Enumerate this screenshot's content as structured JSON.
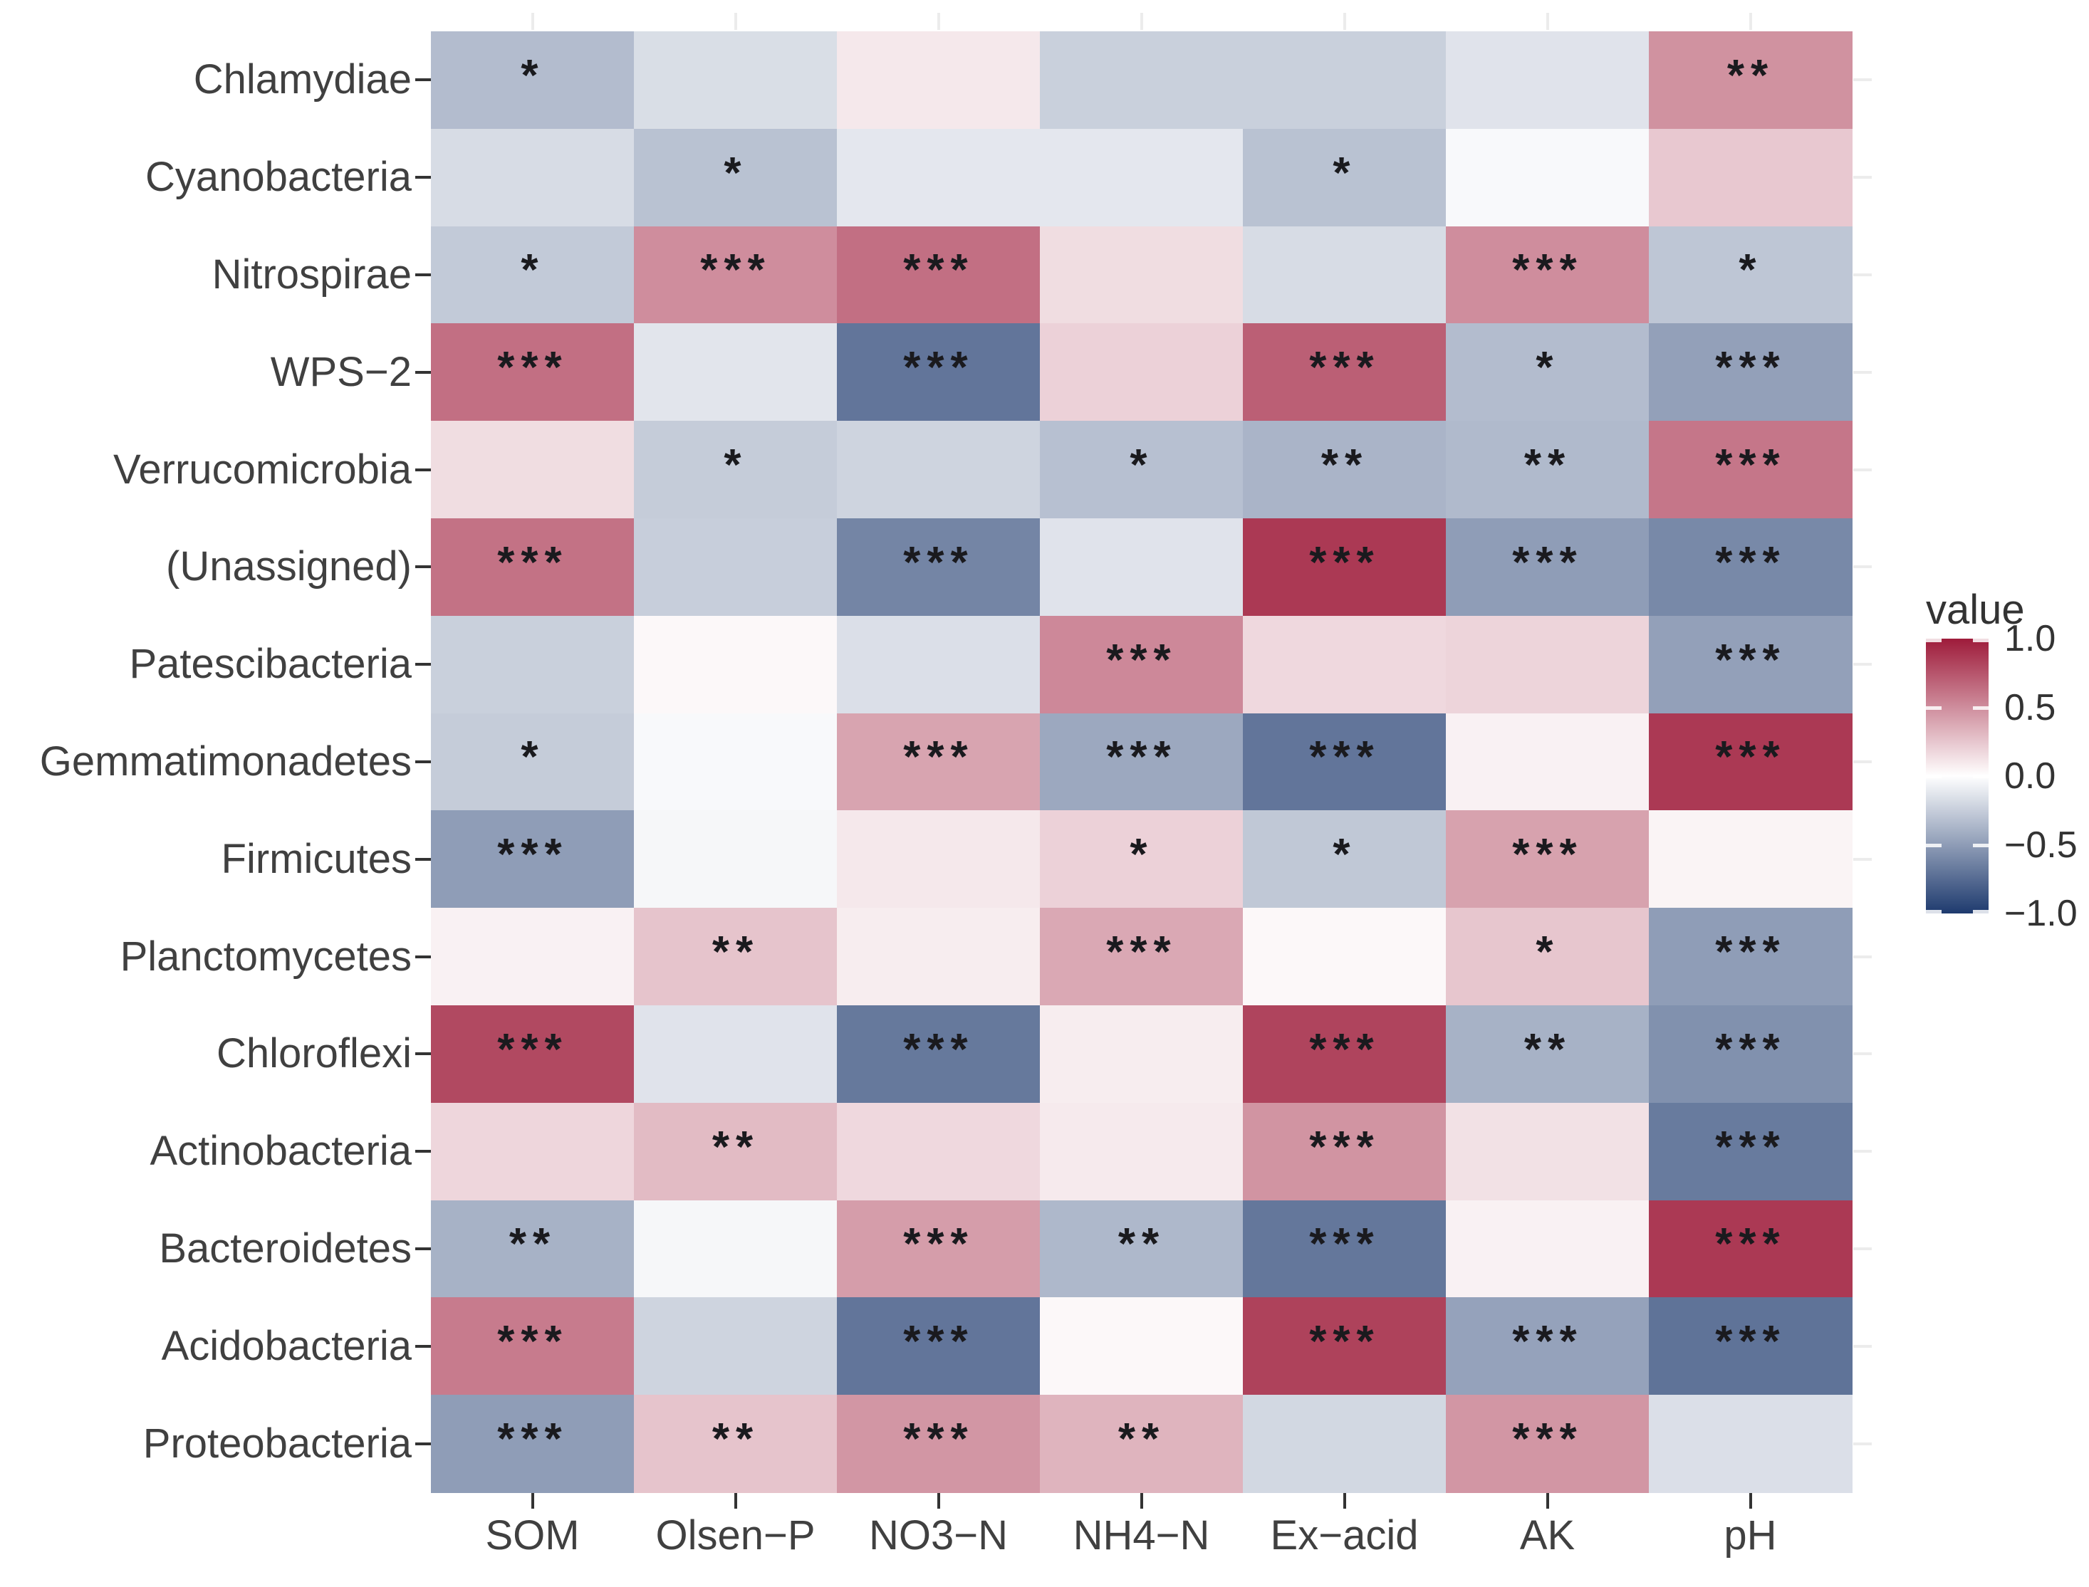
{
  "figure": {
    "background": "#ffffff",
    "colors": {
      "high": "#9e1b3a",
      "mid": "#ffffff",
      "low": "#1e3a6e",
      "axis_text": "#404040",
      "axis_tick": "#333333",
      "faint_tick": "#ececec",
      "star": "#1a1a1e"
    }
  },
  "chart_data": {
    "type": "heatmap",
    "title": "",
    "legend_title": "value",
    "legend_ticks": [
      "1.0",
      "0.5",
      "0.0",
      "−0.5",
      "−1.0"
    ],
    "value_range": [
      -1.0,
      1.0
    ],
    "grid": false,
    "legend_position": "right",
    "x_categories": [
      "SOM",
      "Olsen−P",
      "NO3−N",
      "NH4−N",
      "Ex−acid",
      "AK",
      "pH"
    ],
    "y_categories": [
      "Chlamydiae",
      "Cyanobacteria",
      "Nitrospirae",
      "WPS−2",
      "Verrucomicrobia",
      "(Unassigned)",
      "Patescibacteria",
      "Gemmatimonadetes",
      "Firmicutes",
      "Planctomycetes",
      "Chloroflexi",
      "Actinobacteria",
      "Bacteroidetes",
      "Acidobacteria",
      "Proteobacteria"
    ],
    "series": [
      {
        "name": "Chlamydiae",
        "values": [
          -0.34,
          -0.17,
          0.1,
          -0.24,
          -0.24,
          -0.14,
          0.48
        ],
        "significance": [
          "*",
          "",
          "",
          "",
          "",
          "",
          "**"
        ]
      },
      {
        "name": "Cyanobacteria",
        "values": [
          -0.18,
          -0.31,
          -0.12,
          -0.12,
          -0.31,
          -0.03,
          0.24
        ],
        "significance": [
          "",
          "*",
          "",
          "",
          "*",
          "",
          ""
        ]
      },
      {
        "name": "Nitrospirae",
        "values": [
          -0.27,
          0.5,
          0.63,
          0.15,
          -0.18,
          0.5,
          -0.29
        ],
        "significance": [
          "*",
          "***",
          "***",
          "",
          "",
          "***",
          "*"
        ]
      },
      {
        "name": "WPS-2",
        "values": [
          0.63,
          -0.13,
          -0.7,
          0.2,
          0.7,
          -0.34,
          -0.48
        ],
        "significance": [
          "***",
          "",
          "***",
          "",
          "***",
          "*",
          "***"
        ]
      },
      {
        "name": "Verrucomicrobia",
        "values": [
          0.15,
          -0.26,
          -0.22,
          -0.32,
          -0.38,
          -0.35,
          0.6
        ],
        "significance": [
          "",
          "*",
          "",
          "*",
          "**",
          "**",
          "***"
        ]
      },
      {
        "name": "(Unassigned)",
        "values": [
          0.62,
          -0.25,
          -0.62,
          -0.14,
          0.87,
          -0.5,
          -0.6
        ],
        "significance": [
          "***",
          "",
          "***",
          "",
          "***",
          "***",
          "***"
        ]
      },
      {
        "name": "Patescibacteria",
        "values": [
          -0.24,
          0.03,
          -0.16,
          0.52,
          0.17,
          0.19,
          -0.48
        ],
        "significance": [
          "",
          "",
          "",
          "***",
          "",
          "",
          "***"
        ]
      },
      {
        "name": "Gemmatimonadetes",
        "values": [
          -0.26,
          -0.03,
          0.4,
          -0.44,
          -0.7,
          0.06,
          0.87
        ],
        "significance": [
          "*",
          "",
          "***",
          "***",
          "***",
          "",
          "***"
        ]
      },
      {
        "name": "Firmicutes",
        "values": [
          -0.5,
          -0.04,
          0.1,
          0.2,
          -0.28,
          0.41,
          0.05
        ],
        "significance": [
          "***",
          "",
          "",
          "*",
          "*",
          "***",
          ""
        ]
      },
      {
        "name": "Planctomycetes",
        "values": [
          0.06,
          0.26,
          0.08,
          0.38,
          0.03,
          0.25,
          -0.5
        ],
        "significance": [
          "",
          "**",
          "",
          "***",
          "",
          "*",
          "***"
        ]
      },
      {
        "name": "Chloroflexi",
        "values": [
          0.8,
          -0.14,
          -0.68,
          0.08,
          0.82,
          -0.39,
          -0.56
        ],
        "significance": [
          "***",
          "",
          "***",
          "",
          "***",
          "**",
          "***"
        ]
      },
      {
        "name": "Actinobacteria",
        "values": [
          0.18,
          0.3,
          0.17,
          0.09,
          0.47,
          0.13,
          -0.67
        ],
        "significance": [
          "",
          "**",
          "",
          "",
          "***",
          "",
          "***"
        ]
      },
      {
        "name": "Bacteroidetes",
        "values": [
          -0.39,
          -0.04,
          0.43,
          -0.36,
          -0.69,
          0.06,
          0.87
        ],
        "significance": [
          "**",
          "",
          "***",
          "**",
          "***",
          "",
          "***"
        ]
      },
      {
        "name": "Acidobacteria",
        "values": [
          0.58,
          -0.22,
          -0.7,
          0.03,
          0.83,
          -0.47,
          -0.71
        ],
        "significance": [
          "***",
          "",
          "***",
          "",
          "***",
          "***",
          "***"
        ]
      },
      {
        "name": "Proteobacteria",
        "values": [
          -0.5,
          0.26,
          0.46,
          0.33,
          -0.2,
          0.46,
          -0.16
        ],
        "significance": [
          "***",
          "**",
          "***",
          "**",
          "",
          "***",
          ""
        ]
      }
    ]
  }
}
